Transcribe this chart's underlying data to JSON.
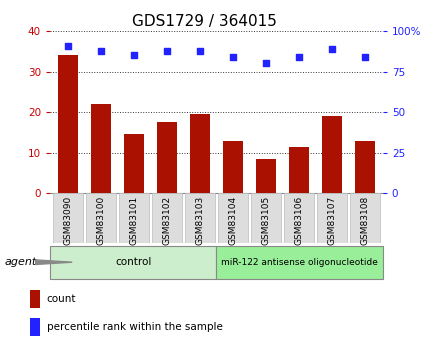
{
  "title": "GDS1729 / 364015",
  "categories": [
    "GSM83090",
    "GSM83100",
    "GSM83101",
    "GSM83102",
    "GSM83103",
    "GSM83104",
    "GSM83105",
    "GSM83106",
    "GSM83107",
    "GSM83108"
  ],
  "count_values": [
    34,
    22,
    14.5,
    17.5,
    19.5,
    13,
    8.5,
    11.5,
    19,
    13
  ],
  "percentile_values": [
    91,
    88,
    85,
    88,
    88,
    84,
    80,
    84,
    89,
    84
  ],
  "left_ylim": [
    0,
    40
  ],
  "right_ylim": [
    0,
    100
  ],
  "left_yticks": [
    0,
    10,
    20,
    30,
    40
  ],
  "right_yticks": [
    0,
    25,
    50,
    75,
    100
  ],
  "right_yticklabels": [
    "0",
    "25",
    "50",
    "75",
    "100%"
  ],
  "bar_color": "#AA1100",
  "dot_color": "#2222FF",
  "grid_color": "#000000",
  "left_tick_color": "#CC0000",
  "right_tick_color": "#2222FF",
  "control_label": "control",
  "treatment_label": "miR-122 antisense oligonucleotide",
  "agent_label": "agent",
  "legend_count_label": "count",
  "legend_percentile_label": "percentile rank within the sample",
  "group_color_control": "#CCEECC",
  "group_color_treatment": "#99EE99",
  "label_box_color": "#DDDDDD",
  "label_box_edge": "#BBBBBB",
  "title_fontsize": 11,
  "tick_fontsize": 7.5,
  "xlabel_fontsize": 6.5,
  "agent_fontsize": 8,
  "legend_fontsize": 7.5,
  "group_label_fontsize": 7.5,
  "treat_label_fontsize": 6.5
}
